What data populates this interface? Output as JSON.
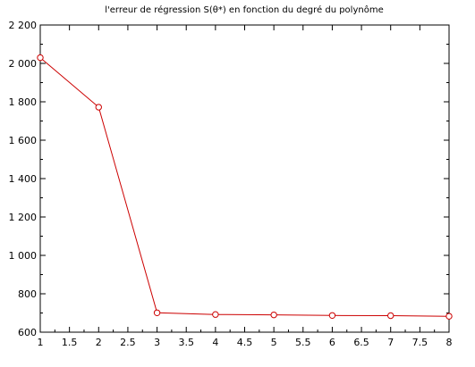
{
  "chart_data": {
    "type": "line",
    "title": "l'erreur de régression S(θ*) en fonction du degré du polynôme",
    "xlabel": "",
    "ylabel": "",
    "xlim": [
      1,
      8
    ],
    "ylim": [
      600,
      2200
    ],
    "grid": false,
    "x_ticks": [
      1,
      1.5,
      2,
      2.5,
      3,
      3.5,
      4,
      4.5,
      5,
      5.5,
      6,
      6.5,
      7,
      7.5,
      8
    ],
    "x_tick_labels": [
      "1",
      "1.5",
      "2",
      "2.5",
      "3",
      "3.5",
      "4",
      "4.5",
      "5",
      "5.5",
      "6",
      "6.5",
      "7",
      "7.5",
      "8"
    ],
    "y_ticks": [
      600,
      800,
      1000,
      1200,
      1400,
      1600,
      1800,
      2000,
      2200
    ],
    "y_tick_labels": [
      "600",
      "800",
      "1 000",
      "1 200",
      "1 400",
      "1 600",
      "1 800",
      "2 000",
      "2 200"
    ],
    "series": [
      {
        "x": [
          1,
          2,
          3,
          4,
          5,
          6,
          7,
          8
        ],
        "y": [
          2030,
          1772,
          701,
          692,
          690,
          687,
          686,
          683
        ],
        "color": "#cc0000",
        "marker": "circle-open"
      }
    ]
  }
}
